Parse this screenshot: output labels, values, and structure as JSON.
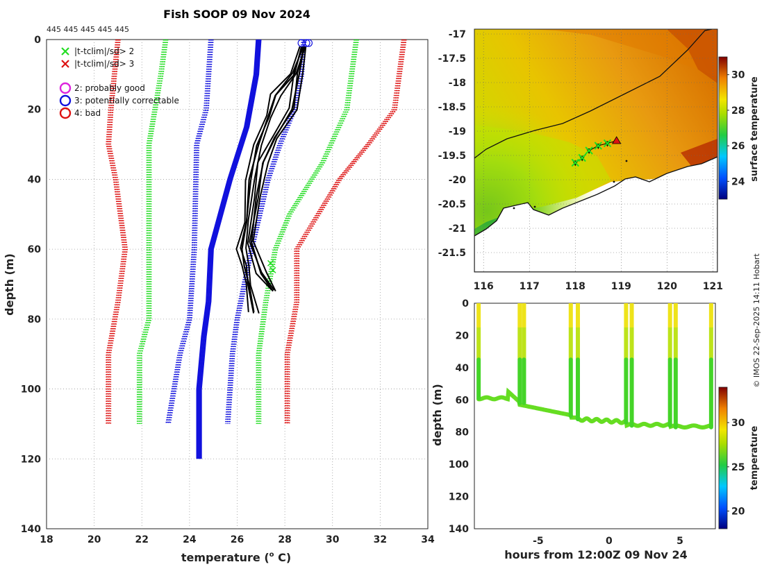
{
  "figure": {
    "title": "Fish SOOP 09 Nov 2024",
    "credit": "© IMOS 22-Sep-2025 14:11 Hobart",
    "top_annotation": "445 445 445 445 445"
  },
  "colors": {
    "climatology_green": "#22dd22",
    "climatology_red": "#dd1111",
    "profiles_blue": "#1111dd",
    "profiles_black": "#000000",
    "magenta": "#dd22dd"
  },
  "chart_data": [
    {
      "type": "line",
      "name": "profiles",
      "xlabel": "temperature (°C)",
      "xlabel_text": "temperature (",
      "xlabel_sup": "o",
      "xlabel_unit": " C)",
      "ylabel": "depth (m)",
      "xlim": [
        18,
        34
      ],
      "ylim": [
        140,
        0
      ],
      "xticks": [
        18,
        20,
        22,
        24,
        26,
        28,
        30,
        32,
        34
      ],
      "yticks": [
        0,
        20,
        40,
        60,
        80,
        100,
        120,
        140
      ],
      "grid": true,
      "legend": [
        {
          "label": "|t-tclim|/sd> 2",
          "marker": "x",
          "color": "#22dd22"
        },
        {
          "label": "|t-tclim|/sd> 3",
          "marker": "x",
          "color": "#dd1111"
        },
        {
          "label": "2: probably good",
          "marker": "o",
          "color": "#dd22dd"
        },
        {
          "label": "3: potentially correctable",
          "marker": "o",
          "color": "#1111dd"
        },
        {
          "label": "4: bad",
          "marker": "o",
          "color": "#dd1111"
        }
      ],
      "series": [
        {
          "name": "clim +3sd",
          "style": "dotted",
          "color": "#dd1111",
          "depth": [
            0,
            20,
            30,
            40,
            60,
            75,
            90,
            110
          ],
          "temp": [
            33.0,
            32.6,
            31.5,
            30.3,
            28.5,
            28.5,
            28.1,
            28.1
          ]
        },
        {
          "name": "clim -3sd",
          "style": "dotted",
          "color": "#dd1111",
          "depth": [
            0,
            20,
            30,
            40,
            60,
            75,
            90,
            110
          ],
          "temp": [
            21.0,
            20.7,
            20.6,
            20.9,
            21.3,
            21.0,
            20.6,
            20.6
          ]
        },
        {
          "name": "clim +2sd",
          "style": "dotted",
          "color": "#22dd22",
          "depth": [
            0,
            20,
            35,
            50,
            60,
            75,
            90,
            110
          ],
          "temp": [
            31.0,
            30.6,
            29.6,
            28.2,
            27.6,
            27.2,
            26.9,
            26.9
          ]
        },
        {
          "name": "clim -2sd",
          "style": "dotted",
          "color": "#22dd22",
          "depth": [
            0,
            10,
            30,
            60,
            80,
            90,
            110
          ],
          "temp": [
            23.0,
            22.8,
            22.3,
            22.3,
            22.3,
            21.9,
            21.9
          ]
        },
        {
          "name": "clim -1sd",
          "style": "dotted",
          "color": "#1111dd",
          "depth": [
            0,
            20,
            30,
            60,
            80,
            90,
            110
          ],
          "temp": [
            24.9,
            24.7,
            24.3,
            24.2,
            24.0,
            23.6,
            23.1
          ]
        },
        {
          "name": "clim +1sd",
          "style": "dotted",
          "color": "#1111dd",
          "depth": [
            0,
            10,
            20,
            30,
            40,
            60,
            80,
            90,
            110
          ],
          "temp": [
            28.8,
            28.7,
            28.4,
            27.8,
            27.3,
            26.6,
            26.0,
            25.8,
            25.6
          ]
        },
        {
          "name": "profile cluster (blue)",
          "style": "solid",
          "color": "#1111dd",
          "depth": [
            0,
            10,
            25,
            40,
            60,
            75,
            85,
            100,
            120
          ],
          "temp": [
            26.9,
            26.8,
            26.4,
            25.7,
            24.9,
            24.8,
            24.6,
            24.4,
            24.4
          ]
        },
        {
          "name": "profile 1 (black)",
          "style": "solid",
          "color": "#000000",
          "depth": [
            2,
            10,
            16,
            22,
            30,
            40,
            52,
            60,
            65,
            70,
            78
          ],
          "temp": [
            28.7,
            28.4,
            27.6,
            27.3,
            26.9,
            26.5,
            26.4,
            26.2,
            26.3,
            26.5,
            26.7
          ]
        },
        {
          "name": "profile 2 (black)",
          "style": "solid",
          "color": "#000000",
          "depth": [
            2,
            10,
            20,
            28,
            35,
            45,
            58,
            67,
            72
          ],
          "temp": [
            28.8,
            28.6,
            28.3,
            27.6,
            27.1,
            26.8,
            26.6,
            27.0,
            27.5
          ]
        }
      ],
      "flags": [
        {
          "symbol": "circle",
          "color": "#1111dd",
          "temp": 28.7,
          "depth": 1
        },
        {
          "symbol": "circle",
          "color": "#1111dd",
          "temp": 28.9,
          "depth": 1
        },
        {
          "symbol": "circle",
          "color": "#1111dd",
          "temp": 29.0,
          "depth": 1
        },
        {
          "symbol": "cross",
          "color": "#22dd22",
          "temp": 27.4,
          "depth": 64
        },
        {
          "symbol": "cross",
          "color": "#22dd22",
          "temp": 27.5,
          "depth": 66
        }
      ]
    },
    {
      "type": "heatmap",
      "name": "map",
      "xlim": [
        115.8,
        121.1
      ],
      "ylim": [
        -21.9,
        -16.9
      ],
      "xticks": [
        116,
        117,
        118,
        119,
        120,
        121
      ],
      "yticks": [
        -17,
        -17.5,
        -18,
        -18.5,
        -19,
        -19.5,
        -20,
        -20.5,
        -21,
        -21.5
      ],
      "colorbar": {
        "label": "surface temperature",
        "range": [
          23,
          31
        ],
        "ticks": [
          24,
          26,
          28,
          30
        ]
      },
      "track": [
        {
          "lon": 118.0,
          "lat": -19.65
        },
        {
          "lon": 118.15,
          "lat": -19.55
        },
        {
          "lon": 118.3,
          "lat": -19.4
        },
        {
          "lon": 118.5,
          "lat": -19.3
        },
        {
          "lon": 118.7,
          "lat": -19.25
        },
        {
          "lon": 118.9,
          "lat": -19.2
        }
      ]
    },
    {
      "type": "heatmap",
      "name": "time-depth",
      "xlabel": "hours from 12:00Z 09 Nov 24",
      "ylabel": "depth (m)",
      "xlim": [
        -9.5,
        7.5
      ],
      "ylim": [
        140,
        0
      ],
      "xticks": [
        -5,
        0,
        5
      ],
      "yticks": [
        0,
        20,
        40,
        60,
        80,
        100,
        120,
        140
      ],
      "colorbar": {
        "label": "temperature",
        "range": [
          18,
          34
        ],
        "ticks": [
          20,
          25,
          30
        ]
      },
      "casts": [
        {
          "hour": -9.2,
          "bottom": 59
        },
        {
          "hour": -6.3,
          "bottom": 62
        },
        {
          "hour": -6.0,
          "bottom": 62
        },
        {
          "hour": -2.7,
          "bottom": 70
        },
        {
          "hour": -2.2,
          "bottom": 72
        },
        {
          "hour": 1.2,
          "bottom": 74
        },
        {
          "hour": 1.6,
          "bottom": 76
        },
        {
          "hour": 4.3,
          "bottom": 76
        },
        {
          "hour": 4.7,
          "bottom": 77
        },
        {
          "hour": 7.2,
          "bottom": 77
        }
      ]
    }
  ]
}
